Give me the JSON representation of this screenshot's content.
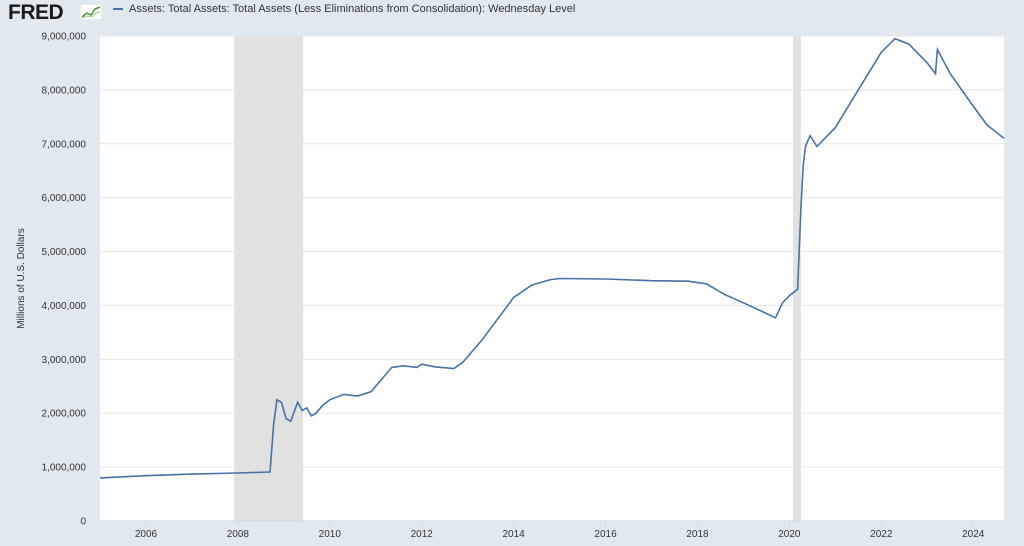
{
  "header": {
    "logo_text": "FRED",
    "legend_label": "Assets: Total Assets: Total Assets (Less Eliminations from Consolidation): Wednesday Level"
  },
  "colors": {
    "series": "#4572a7",
    "recession": "#e1e1e1",
    "grid": "#e6e6e6",
    "page": "#e1e9f0",
    "plot": "#ffffff"
  },
  "chart_data": {
    "type": "line",
    "title": "",
    "ylabel": "Millions of U.S. Dollars",
    "xlabel": "",
    "xlim": [
      2005.0,
      2024.67
    ],
    "ylim": [
      0,
      9000000
    ],
    "grid": true,
    "legend_position": "top-left",
    "x_ticks": [
      2006,
      2008,
      2010,
      2012,
      2014,
      2016,
      2018,
      2020,
      2022,
      2024
    ],
    "y_ticks": [
      0,
      1000000,
      2000000,
      3000000,
      4000000,
      5000000,
      6000000,
      7000000,
      8000000,
      9000000
    ],
    "y_tick_labels": [
      "0",
      "1,000,000",
      "2,000,000",
      "3,000,000",
      "4,000,000",
      "5,000,000",
      "6,000,000",
      "7,000,000",
      "8,000,000",
      "9,000,000"
    ],
    "recessions": [
      [
        2007.92,
        2009.42
      ],
      [
        2020.08,
        2020.25
      ]
    ],
    "series": [
      {
        "name": "Assets: Total Assets: Total Assets (Less Eliminations from Consolidation): Wednesday Level",
        "x": [
          2005.0,
          2006.0,
          2007.0,
          2008.0,
          2008.7,
          2008.78,
          2008.85,
          2008.95,
          2009.05,
          2009.15,
          2009.3,
          2009.4,
          2009.5,
          2009.6,
          2009.7,
          2009.85,
          2010.0,
          2010.3,
          2010.6,
          2010.9,
          2011.1,
          2011.35,
          2011.6,
          2011.9,
          2012.0,
          2012.3,
          2012.7,
          2012.9,
          2013.3,
          2013.7,
          2014.0,
          2014.4,
          2014.8,
          2015.0,
          2016.0,
          2017.0,
          2017.8,
          2018.2,
          2018.6,
          2019.0,
          2019.5,
          2019.7,
          2019.85,
          2020.0,
          2020.18,
          2020.25,
          2020.3,
          2020.35,
          2020.45,
          2020.6,
          2021.0,
          2021.5,
          2022.0,
          2022.3,
          2022.6,
          2023.0,
          2023.18,
          2023.22,
          2023.5,
          2024.0,
          2024.3,
          2024.67
        ],
        "y": [
          800000,
          840000,
          870000,
          890000,
          910000,
          1800000,
          2250000,
          2200000,
          1900000,
          1850000,
          2200000,
          2050000,
          2100000,
          1950000,
          2000000,
          2150000,
          2250000,
          2350000,
          2320000,
          2400000,
          2600000,
          2850000,
          2880000,
          2850000,
          2910000,
          2860000,
          2830000,
          2950000,
          3350000,
          3800000,
          4150000,
          4380000,
          4480000,
          4500000,
          4490000,
          4460000,
          4450000,
          4400000,
          4200000,
          4050000,
          3850000,
          3770000,
          4050000,
          4180000,
          4300000,
          5800000,
          6600000,
          6950000,
          7150000,
          6950000,
          7300000,
          8000000,
          8700000,
          8950000,
          8850000,
          8500000,
          8300000,
          8750000,
          8300000,
          7700000,
          7350000,
          7100000
        ]
      }
    ]
  }
}
